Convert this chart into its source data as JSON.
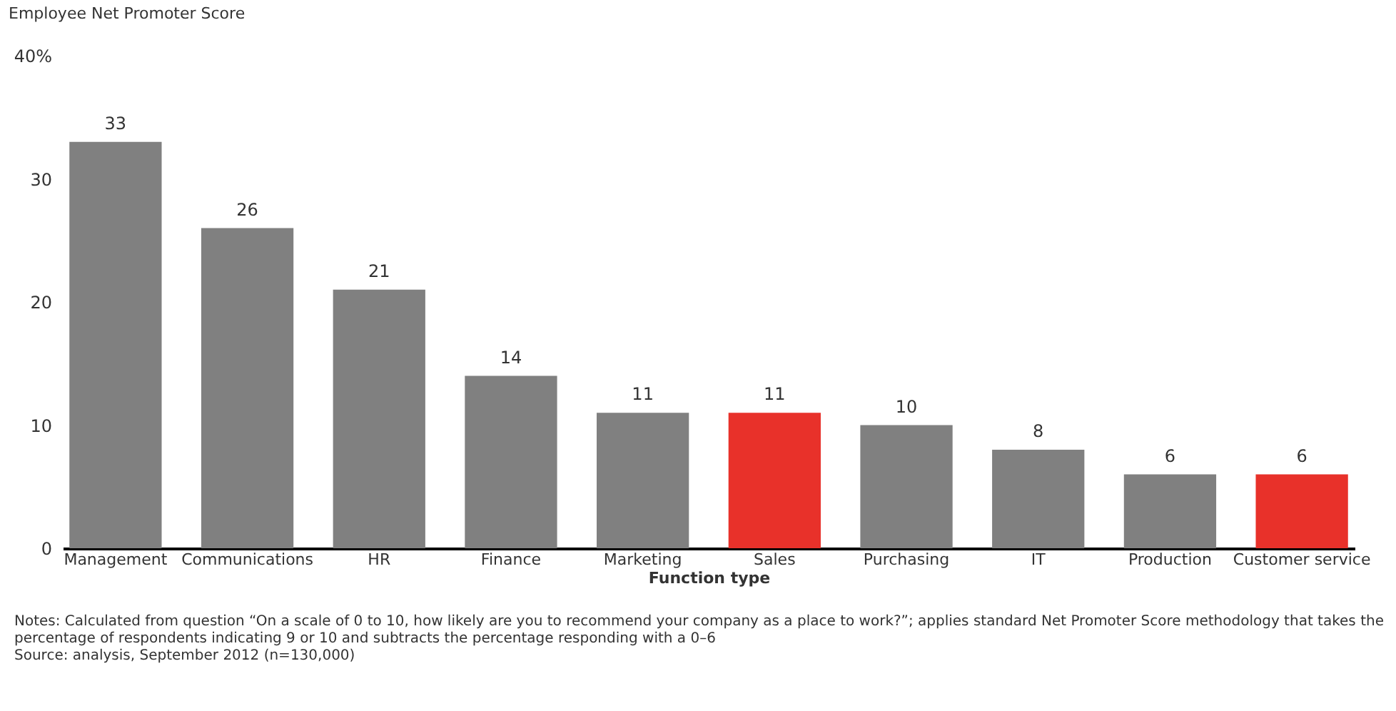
{
  "chart_data": {
    "type": "bar",
    "title": "Employee Net Promoter Score",
    "xlabel": "Function type",
    "categories": [
      "Management",
      "Communications",
      "HR",
      "Finance",
      "Marketing",
      "Sales",
      "Purchasing",
      "IT",
      "Production",
      "Customer service"
    ],
    "values": [
      33,
      26,
      21,
      14,
      11,
      11,
      10,
      8,
      6,
      6
    ],
    "colors": [
      "#808080",
      "#808080",
      "#808080",
      "#808080",
      "#808080",
      "#e8312a",
      "#808080",
      "#808080",
      "#808080",
      "#e8312a"
    ],
    "ylim": [
      0,
      40
    ],
    "yticks": [
      0,
      10,
      20,
      30,
      {
        "value": 40,
        "label": "40%"
      }
    ],
    "grid": false,
    "data_labels": true,
    "annotations": [
      "Notes: Calculated from question “On a scale of 0 to 10, how likely are you to recommend your company as a place to work?”; applies standard Net Promoter Score methodology that takes the percentage of respondents indicating 9 or 10 and subtracts the percentage responding with a 0–6",
      "Source: analysis, September 2012 (n=130,000)"
    ]
  }
}
